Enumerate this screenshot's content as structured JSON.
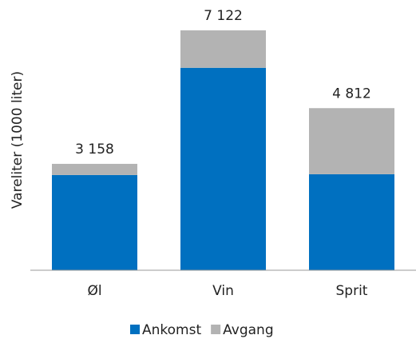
{
  "chart_data": {
    "type": "stacked_bar",
    "y_label": "Vareliter (1000 liter)",
    "categories": [
      "Øl",
      "Vin",
      "Sprit"
    ],
    "series": [
      {
        "name": "Ankomst",
        "color": "#0070c0",
        "values": [
          2826,
          6010,
          2850
        ]
      },
      {
        "name": "Avgang",
        "color": "#b3b3b3",
        "values": [
          332,
          1112,
          1962
        ]
      }
    ],
    "totals": [
      3158,
      7122,
      4812
    ],
    "total_labels": [
      "3 158",
      "7 122",
      "4 812"
    ],
    "ylim": [
      0,
      7500
    ],
    "legend": "bottom"
  }
}
